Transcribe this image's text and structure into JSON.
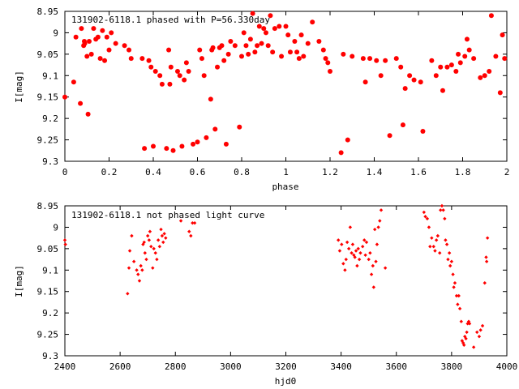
{
  "colors": {
    "points": "#ff0000",
    "axes": "#000000",
    "background": "#ffffff"
  },
  "chart_data": [
    {
      "type": "scatter",
      "title": "131902-6118.1 phased with P=56.330day",
      "xlabel": "phase",
      "ylabel": "I[mag]",
      "xlim": [
        0,
        2
      ],
      "ylim": [
        9.3,
        8.95
      ],
      "y_reversed": true,
      "grid": false,
      "legend": "none",
      "marker": "filled-circle-large",
      "xticks": [
        "0",
        "0.2",
        "0.4",
        "0.6",
        "0.8",
        "1",
        "1.2",
        "1.4",
        "1.6",
        "1.8",
        "2"
      ],
      "yticks": [
        "8.95",
        "9",
        "9.05",
        "9.1",
        "9.15",
        "9.2",
        "9.25",
        "9.3"
      ],
      "series": [
        {
          "points": [
            [
              0.0,
              9.15
            ],
            [
              0.04,
              9.115
            ],
            [
              0.05,
              9.01
            ],
            [
              0.07,
              9.165
            ],
            [
              0.075,
              8.99
            ],
            [
              0.085,
              9.03
            ],
            [
              0.088,
              9.02
            ],
            [
              0.09,
              9.025
            ],
            [
              0.1,
              9.055
            ],
            [
              0.105,
              9.19
            ],
            [
              0.11,
              9.02
            ],
            [
              0.12,
              9.05
            ],
            [
              0.13,
              8.99
            ],
            [
              0.14,
              9.015
            ],
            [
              0.15,
              9.01
            ],
            [
              0.16,
              9.06
            ],
            [
              0.17,
              8.995
            ],
            [
              0.18,
              9.065
            ],
            [
              0.19,
              9.01
            ],
            [
              0.2,
              9.04
            ],
            [
              0.21,
              9.0
            ],
            [
              0.23,
              9.025
            ],
            [
              0.27,
              9.03
            ],
            [
              0.29,
              9.04
            ],
            [
              0.3,
              9.06
            ],
            [
              0.35,
              9.06
            ],
            [
              0.36,
              9.27
            ],
            [
              0.38,
              9.065
            ],
            [
              0.39,
              9.08
            ],
            [
              0.4,
              9.265
            ],
            [
              0.41,
              9.09
            ],
            [
              0.43,
              9.1
            ],
            [
              0.44,
              9.12
            ],
            [
              0.46,
              9.27
            ],
            [
              0.47,
              9.04
            ],
            [
              0.475,
              9.12
            ],
            [
              0.48,
              9.08
            ],
            [
              0.49,
              9.275
            ],
            [
              0.51,
              9.09
            ],
            [
              0.52,
              9.1
            ],
            [
              0.53,
              9.265
            ],
            [
              0.54,
              9.11
            ],
            [
              0.55,
              9.07
            ],
            [
              0.56,
              9.09
            ],
            [
              0.58,
              9.26
            ],
            [
              0.6,
              9.255
            ],
            [
              0.61,
              9.04
            ],
            [
              0.62,
              9.06
            ],
            [
              0.63,
              9.1
            ],
            [
              0.64,
              9.245
            ],
            [
              0.66,
              9.155
            ],
            [
              0.665,
              9.04
            ],
            [
              0.67,
              9.035
            ],
            [
              0.68,
              9.225
            ],
            [
              0.69,
              9.08
            ],
            [
              0.7,
              9.035
            ],
            [
              0.71,
              9.03
            ],
            [
              0.72,
              9.065
            ],
            [
              0.73,
              9.26
            ],
            [
              0.74,
              9.05
            ],
            [
              0.75,
              9.02
            ],
            [
              0.77,
              9.03
            ],
            [
              0.79,
              9.22
            ],
            [
              0.8,
              9.055
            ],
            [
              0.81,
              9.0
            ],
            [
              0.82,
              9.03
            ],
            [
              0.83,
              9.05
            ],
            [
              0.84,
              9.015
            ],
            [
              0.85,
              8.955
            ],
            [
              0.86,
              9.045
            ],
            [
              0.87,
              9.03
            ],
            [
              0.88,
              8.985
            ],
            [
              0.89,
              9.025
            ],
            [
              0.9,
              8.99
            ],
            [
              0.91,
              9.0
            ],
            [
              0.92,
              9.03
            ],
            [
              0.93,
              8.96
            ],
            [
              0.94,
              9.045
            ],
            [
              0.95,
              8.99
            ],
            [
              0.97,
              8.985
            ],
            [
              0.98,
              9.055
            ],
            [
              1.0,
              8.985
            ],
            [
              1.01,
              9.005
            ],
            [
              1.02,
              9.045
            ],
            [
              1.04,
              9.02
            ],
            [
              1.05,
              9.045
            ],
            [
              1.06,
              9.06
            ],
            [
              1.07,
              9.005
            ],
            [
              1.08,
              9.055
            ],
            [
              1.1,
              9.025
            ],
            [
              1.12,
              8.975
            ],
            [
              1.15,
              9.02
            ],
            [
              1.17,
              9.04
            ],
            [
              1.18,
              9.06
            ],
            [
              1.19,
              9.07
            ],
            [
              1.2,
              9.09
            ],
            [
              1.25,
              9.28
            ],
            [
              1.26,
              9.05
            ],
            [
              1.28,
              9.25
            ],
            [
              1.3,
              9.055
            ],
            [
              1.35,
              9.06
            ],
            [
              1.36,
              9.115
            ],
            [
              1.38,
              9.06
            ],
            [
              1.41,
              9.065
            ],
            [
              1.43,
              9.1
            ],
            [
              1.45,
              9.065
            ],
            [
              1.47,
              9.24
            ],
            [
              1.5,
              9.06
            ],
            [
              1.52,
              9.08
            ],
            [
              1.53,
              9.215
            ],
            [
              1.54,
              9.13
            ],
            [
              1.56,
              9.1
            ],
            [
              1.58,
              9.11
            ],
            [
              1.61,
              9.115
            ],
            [
              1.62,
              9.23
            ],
            [
              1.66,
              9.065
            ],
            [
              1.68,
              9.1
            ],
            [
              1.7,
              9.08
            ],
            [
              1.71,
              9.135
            ],
            [
              1.73,
              9.08
            ],
            [
              1.75,
              9.075
            ],
            [
              1.77,
              9.09
            ],
            [
              1.78,
              9.05
            ],
            [
              1.79,
              9.07
            ],
            [
              1.81,
              9.055
            ],
            [
              1.82,
              9.015
            ],
            [
              1.83,
              9.04
            ],
            [
              1.85,
              9.06
            ],
            [
              1.88,
              9.105
            ],
            [
              1.9,
              9.1
            ],
            [
              1.92,
              9.09
            ],
            [
              1.93,
              8.96
            ],
            [
              1.95,
              9.055
            ],
            [
              1.97,
              9.14
            ],
            [
              1.98,
              9.005
            ],
            [
              1.99,
              9.06
            ]
          ]
        }
      ]
    },
    {
      "type": "scatter",
      "title": "131902-6118.1 not phased light curve",
      "xlabel": "hjd0",
      "ylabel": "I[mag]",
      "xlim": [
        2400,
        4000
      ],
      "ylim": [
        9.3,
        8.95
      ],
      "y_reversed": true,
      "grid": false,
      "legend": "none",
      "marker": "filled-diamond-small",
      "xticks": [
        "2400",
        "2600",
        "2800",
        "3000",
        "3200",
        "3400",
        "3600",
        "3800",
        "4000"
      ],
      "yticks": [
        "8.95",
        "9",
        "9.05",
        "9.1",
        "9.15",
        "9.2",
        "9.25",
        "9.3"
      ],
      "series": [
        {
          "points": [
            [
              2400,
              9.03
            ],
            [
              2402,
              9.04
            ],
            [
              2627,
              9.155
            ],
            [
              2632,
              9.095
            ],
            [
              2635,
              9.055
            ],
            [
              2642,
              9.02
            ],
            [
              2650,
              9.08
            ],
            [
              2660,
              9.1
            ],
            [
              2665,
              9.11
            ],
            [
              2670,
              9.125
            ],
            [
              2675,
              9.09
            ],
            [
              2680,
              9.1
            ],
            [
              2683,
              9.04
            ],
            [
              2687,
              9.035
            ],
            [
              2690,
              9.06
            ],
            [
              2695,
              9.075
            ],
            [
              2700,
              9.02
            ],
            [
              2705,
              9.03
            ],
            [
              2708,
              9.01
            ],
            [
              2712,
              9.045
            ],
            [
              2718,
              9.095
            ],
            [
              2722,
              9.05
            ],
            [
              2728,
              9.06
            ],
            [
              2733,
              9.075
            ],
            [
              2738,
              9.03
            ],
            [
              2743,
              9.045
            ],
            [
              2748,
              9.005
            ],
            [
              2752,
              9.02
            ],
            [
              2756,
              9.035
            ],
            [
              2760,
              9.015
            ],
            [
              2765,
              9.025
            ],
            [
              2820,
              8.985
            ],
            [
              2850,
              9.01
            ],
            [
              2856,
              9.02
            ],
            [
              2862,
              8.99
            ],
            [
              2870,
              8.99
            ],
            [
              3390,
              9.03
            ],
            [
              3395,
              9.055
            ],
            [
              3402,
              9.04
            ],
            [
              3408,
              9.085
            ],
            [
              3414,
              9.1
            ],
            [
              3418,
              9.075
            ],
            [
              3422,
              9.035
            ],
            [
              3428,
              9.05
            ],
            [
              3433,
              9.0
            ],
            [
              3438,
              9.06
            ],
            [
              3442,
              9.04
            ],
            [
              3446,
              9.065
            ],
            [
              3450,
              9.07
            ],
            [
              3454,
              9.055
            ],
            [
              3458,
              9.09
            ],
            [
              3462,
              9.05
            ],
            [
              3466,
              9.075
            ],
            [
              3470,
              9.06
            ],
            [
              3478,
              9.045
            ],
            [
              3484,
              9.03
            ],
            [
              3488,
              9.065
            ],
            [
              3492,
              9.035
            ],
            [
              3500,
              9.075
            ],
            [
              3505,
              9.06
            ],
            [
              3510,
              9.11
            ],
            [
              3515,
              9.09
            ],
            [
              3518,
              9.14
            ],
            [
              3522,
              9.005
            ],
            [
              3526,
              9.08
            ],
            [
              3530,
              9.04
            ],
            [
              3535,
              9.0
            ],
            [
              3540,
              8.985
            ],
            [
              3545,
              8.96
            ],
            [
              3560,
              9.095
            ],
            [
              3700,
              8.965
            ],
            [
              3705,
              8.975
            ],
            [
              3712,
              8.98
            ],
            [
              3718,
              9.0
            ],
            [
              3722,
              9.045
            ],
            [
              3728,
              9.025
            ],
            [
              3735,
              9.045
            ],
            [
              3740,
              9.055
            ],
            [
              3745,
              9.03
            ],
            [
              3750,
              9.02
            ],
            [
              3757,
              9.06
            ],
            [
              3760,
              8.96
            ],
            [
              3765,
              8.95
            ],
            [
              3770,
              8.96
            ],
            [
              3775,
              8.98
            ],
            [
              3778,
              9.03
            ],
            [
              3783,
              9.04
            ],
            [
              3787,
              9.075
            ],
            [
              3792,
              9.06
            ],
            [
              3795,
              9.09
            ],
            [
              3800,
              9.08
            ],
            [
              3805,
              9.11
            ],
            [
              3808,
              9.14
            ],
            [
              3812,
              9.13
            ],
            [
              3818,
              9.16
            ],
            [
              3822,
              9.18
            ],
            [
              3826,
              9.16
            ],
            [
              3830,
              9.19
            ],
            [
              3835,
              9.22
            ],
            [
              3838,
              9.265
            ],
            [
              3842,
              9.27
            ],
            [
              3845,
              9.275
            ],
            [
              3848,
              9.255
            ],
            [
              3852,
              9.26
            ],
            [
              3855,
              9.245
            ],
            [
              3858,
              9.225
            ],
            [
              3862,
              9.22
            ],
            [
              3865,
              9.225
            ],
            [
              3880,
              9.28
            ],
            [
              3892,
              9.245
            ],
            [
              3900,
              9.255
            ],
            [
              3905,
              9.24
            ],
            [
              3912,
              9.23
            ],
            [
              3920,
              9.13
            ],
            [
              3925,
              9.07
            ],
            [
              3927,
              9.08
            ],
            [
              3930,
              9.025
            ]
          ]
        }
      ]
    }
  ]
}
